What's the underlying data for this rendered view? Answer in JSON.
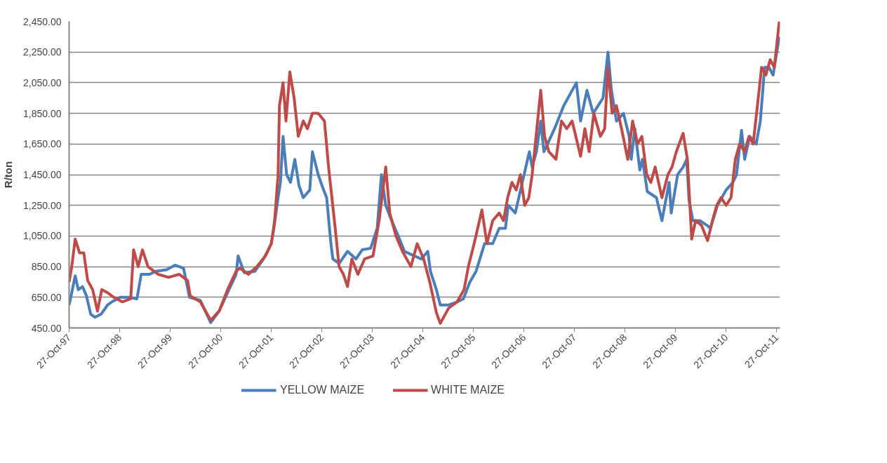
{
  "chart_data": {
    "type": "line",
    "ylabel": "R/ton",
    "legend": "bottom",
    "grid": "y",
    "marker": "none",
    "line_style": "solid",
    "xlim": [
      "1997-10-27",
      "2011-11-20"
    ],
    "ylim": [
      450,
      2450
    ],
    "xticks": [
      {
        "value": "1997-10-27",
        "label": "27-Oct-97"
      },
      {
        "value": "1998-10-27",
        "label": "27-Oct-98"
      },
      {
        "value": "1999-10-27",
        "label": "27-Oct-99"
      },
      {
        "value": "2000-10-27",
        "label": "27-Oct-00"
      },
      {
        "value": "2001-10-27",
        "label": "27-Oct-01"
      },
      {
        "value": "2002-10-27",
        "label": "27-Oct-02"
      },
      {
        "value": "2003-10-27",
        "label": "27-Oct-03"
      },
      {
        "value": "2004-10-27",
        "label": "27-Oct-04"
      },
      {
        "value": "2005-10-27",
        "label": "27-Oct-05"
      },
      {
        "value": "2006-10-27",
        "label": "27-Oct-06"
      },
      {
        "value": "2007-10-27",
        "label": "27-Oct-07"
      },
      {
        "value": "2008-10-27",
        "label": "27-Oct-08"
      },
      {
        "value": "2009-10-27",
        "label": "27-Oct-09"
      },
      {
        "value": "2010-10-27",
        "label": "27-Oct-10"
      },
      {
        "value": "2011-10-27",
        "label": "27-Oct-11"
      }
    ],
    "yticks": [
      {
        "value": 450,
        "label": "450.00"
      },
      {
        "value": 650,
        "label": "650.00"
      },
      {
        "value": 850,
        "label": "850.00"
      },
      {
        "value": 1050,
        "label": "1,050.00"
      },
      {
        "value": 1250,
        "label": "1,250.00"
      },
      {
        "value": 1450,
        "label": "1,450.00"
      },
      {
        "value": 1650,
        "label": "1,650.00"
      },
      {
        "value": 1850,
        "label": "1,850.00"
      },
      {
        "value": 2050,
        "label": "2,050.00"
      },
      {
        "value": 2250,
        "label": "2,250.00"
      },
      {
        "value": 2450,
        "label": "2,450.00"
      }
    ],
    "series": [
      {
        "name": "YELLOW MAIZE",
        "color": "#4a7ebb",
        "x": [
          "1997-10-27",
          "1997-11-15",
          "1997-12-10",
          "1998-01-01",
          "1998-02-01",
          "1998-03-01",
          "1998-04-01",
          "1998-05-01",
          "1998-06-15",
          "1998-08-01",
          "1998-09-01",
          "1998-11-01",
          "1999-01-01",
          "1999-03-01",
          "1999-04-01",
          "1999-06-01",
          "1999-07-15",
          "1999-10-01",
          "1999-12-01",
          "2000-02-01",
          "2000-03-15",
          "2000-06-01",
          "2000-08-15",
          "2000-10-15",
          "2000-12-15",
          "2001-02-15",
          "2001-03-01",
          "2001-04-15",
          "2001-07-01",
          "2001-09-01",
          "2001-10-27",
          "2001-11-15",
          "2001-12-15",
          "2002-01-01",
          "2002-01-20",
          "2002-02-15",
          "2002-03-15",
          "2002-04-15",
          "2002-05-15",
          "2002-06-15",
          "2002-08-01",
          "2002-08-20",
          "2002-10-01",
          "2002-11-01",
          "2002-12-01",
          "2003-01-01",
          "2003-01-15",
          "2003-03-01",
          "2003-05-01",
          "2003-07-01",
          "2003-08-15",
          "2003-10-15",
          "2003-12-01",
          "2004-01-01",
          "2004-02-01",
          "2004-03-15",
          "2004-05-01",
          "2004-06-15",
          "2004-08-01",
          "2004-10-15",
          "2004-12-01",
          "2004-12-20",
          "2005-02-01",
          "2005-03-01",
          "2005-05-01",
          "2005-07-01",
          "2005-08-15",
          "2005-10-01",
          "2005-11-15",
          "2006-01-15",
          "2006-03-15",
          "2006-05-01",
          "2006-06-15",
          "2006-07-05",
          "2006-08-25",
          "2006-10-15",
          "2006-12-05",
          "2006-12-25",
          "2007-01-25",
          "2007-02-25",
          "2007-03-20",
          "2007-04-15",
          "2007-06-05",
          "2007-08-10",
          "2007-11-10",
          "2007-12-10",
          "2008-01-25",
          "2008-03-10",
          "2008-05-20",
          "2008-06-25",
          "2008-07-20",
          "2008-08-25",
          "2008-10-15",
          "2008-11-25",
          "2008-12-10",
          "2009-01-05",
          "2009-01-25",
          "2009-02-10",
          "2009-03-01",
          "2009-04-05",
          "2009-06-10",
          "2009-07-20",
          "2009-09-10",
          "2009-09-25",
          "2009-11-10",
          "2009-12-20",
          "2010-01-15",
          "2010-02-01",
          "2010-03-01",
          "2010-04-20",
          "2010-06-10",
          "2010-07-05",
          "2010-08-25",
          "2010-10-27",
          "2010-12-15",
          "2011-01-10",
          "2011-02-15",
          "2011-03-10",
          "2011-04-15",
          "2011-06-01",
          "2011-07-01",
          "2011-08-01",
          "2011-09-01",
          "2011-10-01",
          "2011-11-15"
        ],
        "values": [
          600,
          680,
          790,
          700,
          720,
          660,
          540,
          520,
          540,
          600,
          620,
          650,
          650,
          640,
          800,
          800,
          820,
          830,
          860,
          840,
          650,
          630,
          485,
          560,
          680,
          800,
          920,
          810,
          820,
          900,
          1000,
          1100,
          1300,
          1400,
          1700,
          1450,
          1400,
          1550,
          1380,
          1300,
          1350,
          1600,
          1450,
          1370,
          1300,
          1000,
          900,
          870,
          950,
          900,
          960,
          970,
          1100,
          1450,
          1250,
          1150,
          1050,
          950,
          930,
          900,
          950,
          820,
          700,
          600,
          600,
          620,
          640,
          750,
          820,
          1000,
          1000,
          1100,
          1100,
          1250,
          1200,
          1400,
          1600,
          1500,
          1600,
          1800,
          1600,
          1650,
          1750,
          1900,
          2050,
          1800,
          2000,
          1850,
          1950,
          2250,
          2000,
          1800,
          1850,
          1700,
          1550,
          1750,
          1600,
          1480,
          1550,
          1340,
          1300,
          1150,
          1400,
          1200,
          1450,
          1500,
          1550,
          1280,
          1150,
          1150,
          1120,
          1100,
          1250,
          1350,
          1400,
          1450,
          1740,
          1550,
          1700,
          1650,
          1800,
          2150,
          2150,
          2100,
          2350
        ]
      },
      {
        "name": "WHITE MAIZE",
        "color": "#be4b48",
        "x": [
          "1997-10-27",
          "1997-11-15",
          "1997-12-10",
          "1998-01-10",
          "1998-02-10",
          "1998-03-10",
          "1998-04-15",
          "1998-05-20",
          "1998-06-20",
          "1998-08-01",
          "1998-09-15",
          "1998-11-15",
          "1999-01-15",
          "1999-02-05",
          "1999-03-10",
          "1999-04-10",
          "1999-05-20",
          "1999-08-01",
          "1999-10-15",
          "2000-01-01",
          "2000-03-01",
          "2000-03-20",
          "2000-06-01",
          "2000-08-15",
          "2000-10-15",
          "2000-12-15",
          "2001-02-15",
          "2001-03-15",
          "2001-05-15",
          "2001-07-15",
          "2001-09-15",
          "2001-10-27",
          "2001-11-20",
          "2001-12-15",
          "2001-12-25",
          "2002-01-20",
          "2002-02-10",
          "2002-03-10",
          "2002-04-10",
          "2002-05-10",
          "2002-06-15",
          "2002-07-15",
          "2002-08-20",
          "2002-10-01",
          "2002-11-15",
          "2002-12-15",
          "2003-02-01",
          "2003-03-01",
          "2003-04-01",
          "2003-05-01",
          "2003-06-01",
          "2003-07-15",
          "2003-09-01",
          "2003-11-01",
          "2003-12-15",
          "2004-02-01",
          "2004-03-01",
          "2004-04-15",
          "2004-06-01",
          "2004-08-01",
          "2004-09-15",
          "2004-11-01",
          "2004-12-15",
          "2005-02-01",
          "2005-03-01",
          "2005-05-01",
          "2005-07-01",
          "2005-08-20",
          "2005-09-20",
          "2005-11-01",
          "2005-12-27",
          "2006-02-01",
          "2006-03-15",
          "2006-05-01",
          "2006-06-01",
          "2006-07-01",
          "2006-08-01",
          "2006-09-01",
          "2006-10-01",
          "2006-11-01",
          "2006-12-01",
          "2006-12-25",
          "2007-02-25",
          "2007-03-25",
          "2007-04-25",
          "2007-06-15",
          "2007-07-25",
          "2007-09-01",
          "2007-10-10",
          "2007-12-10",
          "2008-01-10",
          "2008-02-10",
          "2008-03-15",
          "2008-05-01",
          "2008-06-01",
          "2008-06-25",
          "2008-07-25",
          "2008-08-25",
          "2008-10-01",
          "2008-11-15",
          "2008-12-20",
          "2009-01-25",
          "2009-02-25",
          "2009-04-01",
          "2009-05-01",
          "2009-06-01",
          "2009-07-20",
          "2009-09-01",
          "2009-10-01",
          "2009-11-01",
          "2009-12-20",
          "2010-01-20",
          "2010-02-20",
          "2010-03-20",
          "2010-05-01",
          "2010-06-15",
          "2010-07-20",
          "2010-08-20",
          "2010-09-20",
          "2010-10-27",
          "2010-12-01",
          "2011-01-01",
          "2011-02-01",
          "2011-03-10",
          "2011-04-10",
          "2011-05-10",
          "2011-06-10",
          "2011-07-10",
          "2011-08-10",
          "2011-09-10",
          "2011-10-10",
          "2011-11-15"
        ],
        "values": [
          750,
          850,
          1030,
          940,
          940,
          760,
          700,
          560,
          700,
          680,
          650,
          620,
          640,
          960,
          850,
          960,
          850,
          800,
          780,
          800,
          760,
          660,
          620,
          500,
          560,
          700,
          820,
          840,
          800,
          850,
          920,
          1000,
          1150,
          1450,
          1900,
          2050,
          1800,
          2120,
          1950,
          1700,
          1800,
          1750,
          1850,
          1850,
          1800,
          1500,
          1100,
          850,
          800,
          720,
          900,
          800,
          900,
          920,
          1150,
          1500,
          1200,
          1050,
          950,
          850,
          1000,
          900,
          750,
          550,
          480,
          580,
          620,
          700,
          850,
          1000,
          1220,
          1000,
          1150,
          1200,
          1150,
          1300,
          1400,
          1350,
          1450,
          1250,
          1300,
          1450,
          2000,
          1700,
          1600,
          1550,
          1800,
          1750,
          1800,
          1570,
          1750,
          1600,
          1850,
          1700,
          1750,
          2150,
          1850,
          1900,
          1750,
          1550,
          1800,
          1650,
          1700,
          1450,
          1400,
          1500,
          1300,
          1450,
          1500,
          1600,
          1720,
          1550,
          1030,
          1150,
          1120,
          1020,
          1150,
          1250,
          1300,
          1250,
          1300,
          1550,
          1650,
          1600,
          1700,
          1650,
          1900,
          2150,
          2100,
          2200,
          2150,
          2450
        ]
      }
    ]
  }
}
